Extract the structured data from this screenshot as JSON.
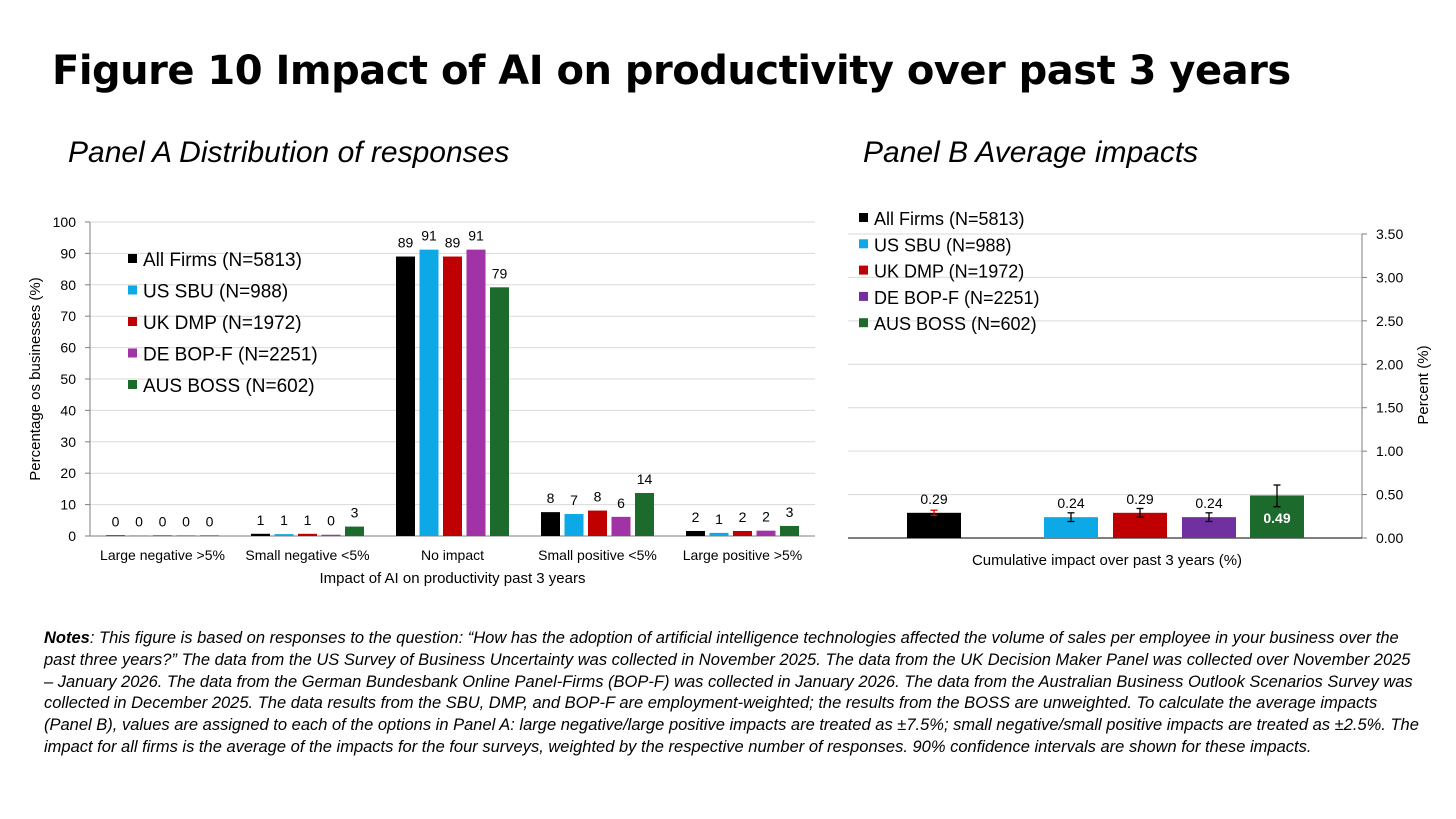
{
  "figure_title": "Figure 10 Impact of AI on productivity over past 3 years",
  "panels": {
    "a_title": "Panel A Distribution of responses",
    "b_title": "Panel B Average impacts"
  },
  "colors": {
    "All Firms (N=5813)": "#000000",
    "US SBU (N=988)": "#0CA9E6",
    "UK DMP (N=1972)": "#C00000",
    "DE BOP-F (N=2251)": "#A133A6",
    "DE BOP-F (N=2251) panel B": "#7030A0",
    "AUS BOSS (N=602)": "#1D6B2C",
    "grid": "#D9D9D9",
    "error_bar_all_firms": "#E00000"
  },
  "chart_data": [
    {
      "type": "bar",
      "title": "Panel A Distribution of responses",
      "xlabel": "Impact of AI on productivity past 3 years",
      "ylabel": "Percentage os businesses (%)",
      "ylim": [
        0,
        100
      ],
      "yticks": [
        "0",
        "10",
        "20",
        "30",
        "40",
        "50",
        "60",
        "70",
        "80",
        "90",
        "100"
      ],
      "grid": true,
      "legend_position": "top-left",
      "categories": [
        "Large negative >5%",
        "Small negative <5%",
        "No impact",
        "Small positive <5%",
        "Large positive >5%"
      ],
      "series": [
        {
          "name": "All Firms (N=5813)",
          "values": [
            0,
            1,
            89,
            8,
            2
          ],
          "labels": [
            "0",
            "1",
            "89",
            "8",
            "2"
          ],
          "heights": [
            0.2,
            0.7,
            89,
            7.6,
            1.6
          ]
        },
        {
          "name": "US SBU (N=988)",
          "values": [
            0,
            1,
            91,
            7,
            1
          ],
          "labels": [
            "0",
            "1",
            "91",
            "7",
            "1"
          ],
          "heights": [
            0.2,
            0.6,
            91.2,
            7.0,
            1.0
          ]
        },
        {
          "name": "UK DMP (N=1972)",
          "values": [
            0,
            1,
            89,
            8,
            2
          ],
          "labels": [
            "0",
            "1",
            "89",
            "8",
            "2"
          ],
          "heights": [
            0.2,
            0.7,
            89,
            8.1,
            1.6
          ]
        },
        {
          "name": "DE BOP-F (N=2251)",
          "values": [
            0,
            0,
            91,
            6,
            2
          ],
          "labels": [
            "0",
            "0",
            "91",
            "6",
            "2"
          ],
          "heights": [
            0.2,
            0.4,
            91.2,
            6.1,
            1.7
          ]
        },
        {
          "name": "AUS BOSS (N=602)",
          "values": [
            0,
            3,
            79,
            14,
            3
          ],
          "labels": [
            "0",
            "3",
            "79",
            "14",
            "3"
          ],
          "heights": [
            0.2,
            3.0,
            79.2,
            13.7,
            3.2
          ]
        }
      ]
    },
    {
      "type": "bar",
      "title": "Panel B Average impacts",
      "xlabel": "Cumulative impact over past 3 years (%)",
      "ylabel": "Percent (%)",
      "ylim": [
        0,
        3.5
      ],
      "yticks": [
        "0.00",
        "0.50",
        "1.00",
        "1.50",
        "2.00",
        "2.50",
        "3.00",
        "3.50"
      ],
      "y_axis_side": "right",
      "grid": true,
      "legend_position": "top-left",
      "series": [
        {
          "name": "All Firms (N=5813)",
          "value": 0.29,
          "label": "0.29",
          "ci": [
            0.26,
            0.32
          ]
        },
        {
          "name": "US SBU (N=988)",
          "value": 0.24,
          "label": "0.24",
          "ci": [
            0.19,
            0.29
          ]
        },
        {
          "name": "UK DMP (N=1972)",
          "value": 0.29,
          "label": "0.29",
          "ci": [
            0.24,
            0.34
          ]
        },
        {
          "name": "DE BOP-F (N=2251)",
          "value": 0.24,
          "label": "0.24",
          "ci": [
            0.19,
            0.29
          ]
        },
        {
          "name": "AUS BOSS (N=602)",
          "value": 0.49,
          "label": "0.49",
          "ci": [
            0.36,
            0.61
          ]
        }
      ]
    }
  ],
  "notes": {
    "label": "Notes",
    "text": ": This figure is based on responses to the question: “How has the adoption of artificial intelligence technologies affected the volume of sales per employee in your business over the past three years?” The data from the US Survey of Business Uncertainty was collected in November 2025. The data from the UK Decision Maker Panel was collected over November 2025 – January 2026. The data from the German Bundesbank Online Panel-Firms (BOP-F) was collected in January 2026. The data from the Australian Business Outlook Scenarios Survey was collected in December 2025. The data results from the SBU, DMP, and BOP-F are employment-weighted; the results from the BOSS are unweighted. To calculate the average impacts (Panel B), values are assigned to each of the options in Panel A: large negative/large positive impacts are treated as ±7.5%; small negative/small positive impacts are treated as ±2.5%. The impact for all firms is the average of the impacts for the four surveys, weighted by the respective number of responses. 90% confidence intervals are shown for these impacts."
  }
}
